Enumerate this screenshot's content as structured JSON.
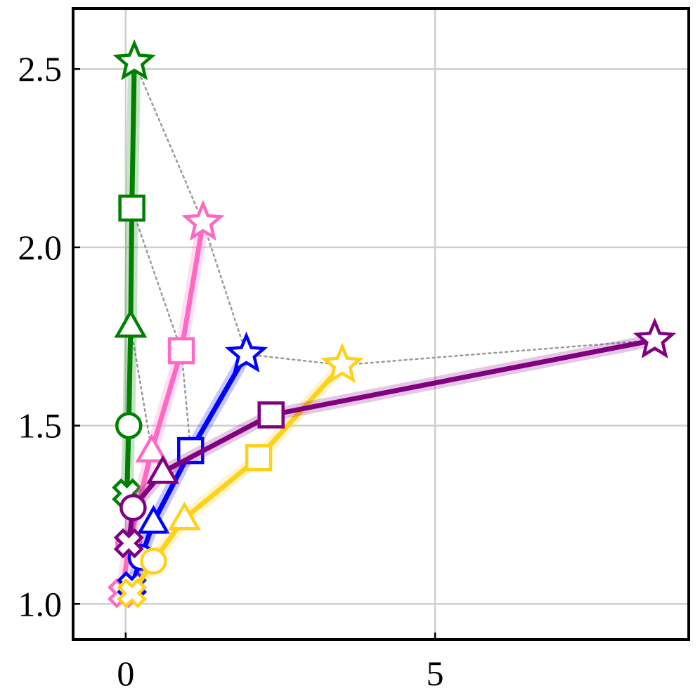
{
  "chart_data": {
    "type": "line",
    "title": "",
    "xlabel": "",
    "ylabel": "",
    "xlim": [
      -0.85,
      9.1
    ],
    "ylim": [
      0.9,
      2.67
    ],
    "grid": true,
    "legend": "none",
    "x_ticks": [
      {
        "value": 0,
        "label": "0"
      },
      {
        "value": 5,
        "label": "5"
      }
    ],
    "y_ticks": [
      {
        "value": 1.0,
        "label": "1.0"
      },
      {
        "value": 1.5,
        "label": "1.5"
      },
      {
        "value": 2.0,
        "label": "2.0"
      },
      {
        "value": 2.5,
        "label": "2.5"
      }
    ],
    "marker_order": [
      "x",
      "circle",
      "triangle",
      "square",
      "star"
    ],
    "series": [
      {
        "color": "#008000",
        "points": [
          {
            "x": 0.02,
            "y": 1.31
          },
          {
            "x": 0.05,
            "y": 1.5
          },
          {
            "x": 0.08,
            "y": 1.78
          },
          {
            "x": 0.1,
            "y": 2.11
          },
          {
            "x": 0.14,
            "y": 2.52
          }
        ]
      },
      {
        "color": "#ff69c4",
        "points": [
          {
            "x": -0.05,
            "y": 1.03
          },
          {
            "x": 0.05,
            "y": 1.17
          },
          {
            "x": 0.42,
            "y": 1.43
          },
          {
            "x": 0.9,
            "y": 1.71
          },
          {
            "x": 1.25,
            "y": 2.07
          }
        ]
      },
      {
        "color": "#0000ff",
        "points": [
          {
            "x": 0.1,
            "y": 1.05
          },
          {
            "x": 0.25,
            "y": 1.13
          },
          {
            "x": 0.45,
            "y": 1.23
          },
          {
            "x": 1.05,
            "y": 1.43
          },
          {
            "x": 1.95,
            "y": 1.7
          }
        ]
      },
      {
        "color": "#ffd11a",
        "points": [
          {
            "x": 0.1,
            "y": 1.03
          },
          {
            "x": 0.45,
            "y": 1.12
          },
          {
            "x": 0.95,
            "y": 1.24
          },
          {
            "x": 2.15,
            "y": 1.41
          },
          {
            "x": 3.5,
            "y": 1.67
          }
        ]
      },
      {
        "color": "#800080",
        "points": [
          {
            "x": 0.05,
            "y": 1.17
          },
          {
            "x": 0.12,
            "y": 1.27
          },
          {
            "x": 0.6,
            "y": 1.37
          },
          {
            "x": 2.35,
            "y": 1.53
          },
          {
            "x": 8.55,
            "y": 1.74
          }
        ]
      }
    ],
    "frontier": {
      "color": "#999999",
      "style": "dotted",
      "points": [
        {
          "x": 0.14,
          "y": 2.52
        },
        {
          "x": 1.25,
          "y": 2.07
        },
        {
          "x": 1.95,
          "y": 1.7
        },
        {
          "x": 3.5,
          "y": 1.67
        },
        {
          "x": 8.55,
          "y": 1.74
        }
      ]
    },
    "frontier_secondary": {
      "color": "#999999",
      "style": "dotted",
      "points": [
        {
          "x": 0.1,
          "y": 2.11
        },
        {
          "x": 0.9,
          "y": 1.71
        },
        {
          "x": 1.05,
          "y": 1.43
        }
      ]
    },
    "frontier_tertiary": {
      "color": "#999999",
      "style": "dotted",
      "points": [
        {
          "x": 0.08,
          "y": 1.78
        },
        {
          "x": 0.42,
          "y": 1.43
        },
        {
          "x": 0.6,
          "y": 1.37
        }
      ]
    }
  }
}
